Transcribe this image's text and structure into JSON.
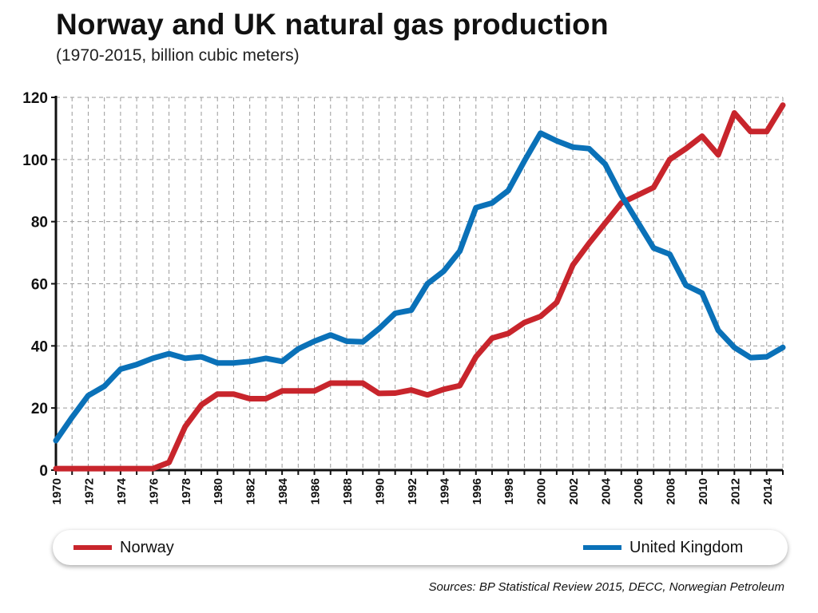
{
  "header": {
    "title": "Norway and UK natural gas production",
    "subtitle": "(1970-2015, billion cubic meters)"
  },
  "footer": {
    "source": "Sources: BP Statistical Review 2015, DECC, Norwegian Petroleum"
  },
  "colors": {
    "norway": "#c8252c",
    "uk": "#0a71b8",
    "grid": "#9a9a9a",
    "axis": "#111111"
  },
  "chart_data": {
    "type": "line",
    "title": "Norway and UK natural gas production",
    "subtitle": "(1970-2015, billion cubic meters)",
    "xlim": [
      1970,
      2015
    ],
    "ylim": [
      0,
      120
    ],
    "yticks": [
      0,
      20,
      40,
      60,
      80,
      100,
      120
    ],
    "xticks": [
      1970,
      1972,
      1974,
      1976,
      1978,
      1980,
      1982,
      1984,
      1986,
      1988,
      1990,
      1992,
      1994,
      1996,
      1998,
      2000,
      2002,
      2004,
      2006,
      2008,
      2010,
      2012,
      2014
    ],
    "grid": true,
    "legend_position": "bottom",
    "x": [
      1970,
      1971,
      1972,
      1973,
      1974,
      1975,
      1976,
      1977,
      1978,
      1979,
      1980,
      1981,
      1982,
      1983,
      1984,
      1985,
      1986,
      1987,
      1988,
      1989,
      1990,
      1991,
      1992,
      1993,
      1994,
      1995,
      1996,
      1997,
      1998,
      1999,
      2000,
      2001,
      2002,
      2003,
      2004,
      2005,
      2006,
      2007,
      2008,
      2009,
      2010,
      2011,
      2012,
      2013,
      2014,
      2015
    ],
    "series": [
      {
        "name": "Norway",
        "color": "#c8252c",
        "values": [
          0.5,
          0.5,
          0.5,
          0.5,
          0.5,
          0.5,
          0.5,
          2.5,
          14,
          21,
          24.5,
          24.5,
          23,
          23,
          25.5,
          25.5,
          25.5,
          28,
          28,
          28,
          24.7,
          24.8,
          25.8,
          24.2,
          26,
          27.2,
          36.5,
          42.5,
          44,
          47.5,
          49.5,
          54,
          66,
          73,
          79.5,
          86,
          88.5,
          91,
          100,
          103.5,
          107.5,
          101.5,
          115,
          109,
          109,
          117.5
        ]
      },
      {
        "name": "United Kingdom",
        "color": "#0a71b8",
        "values": [
          9.5,
          17,
          24,
          27,
          32.5,
          34,
          36,
          37.5,
          36,
          36.5,
          34.5,
          34.5,
          35,
          36,
          35,
          39,
          41.5,
          43.5,
          41.5,
          41.3,
          45.5,
          50.5,
          51.5,
          60,
          64,
          70.5,
          84.5,
          86,
          90,
          99.5,
          108.5,
          106,
          104,
          103.5,
          98.5,
          88.5,
          80,
          71.5,
          69.5,
          59.5,
          57,
          45,
          39.5,
          36.2,
          36.5,
          39.5
        ]
      }
    ]
  }
}
